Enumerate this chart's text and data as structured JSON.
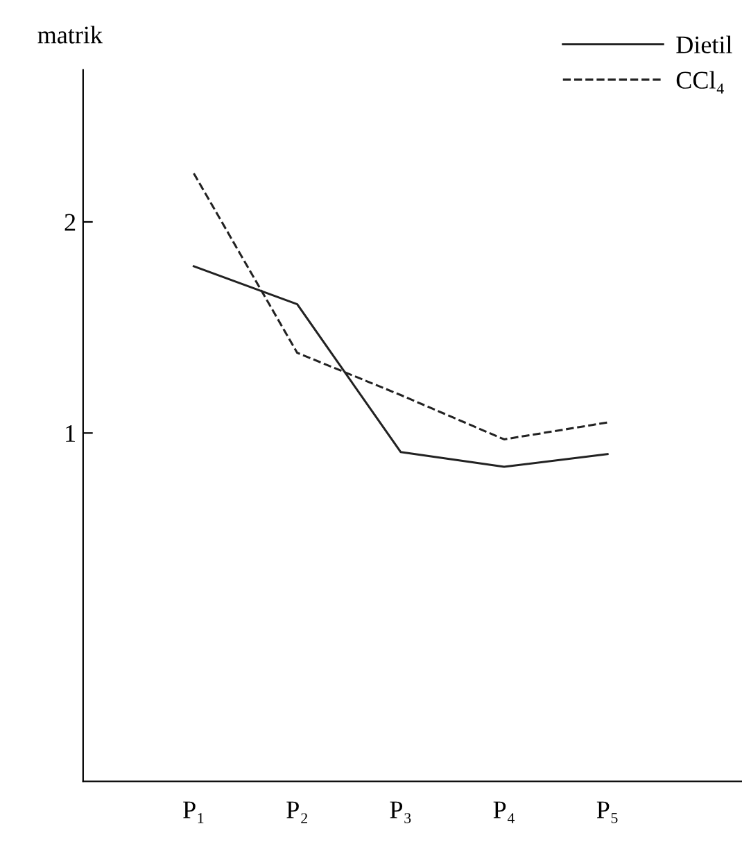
{
  "chart_data": {
    "type": "line",
    "ylabel": "matrik",
    "categories": [
      "P₁",
      "P₂",
      "P₃",
      "P₄",
      "P₅"
    ],
    "series": [
      {
        "name": "Dietil",
        "color": "#222222",
        "line_style": "solid",
        "values": [
          1.79,
          1.61,
          0.91,
          0.84,
          0.9
        ]
      },
      {
        "name": "CCl₄",
        "color": "#222222",
        "line_style": "dashed",
        "values": [
          2.23,
          1.38,
          1.18,
          0.97,
          1.05
        ]
      }
    ],
    "ylim": [
      -0.65,
      2.72
    ],
    "yticks": [
      1,
      2
    ],
    "grid": false,
    "legend": "top right",
    "marker": "none"
  }
}
